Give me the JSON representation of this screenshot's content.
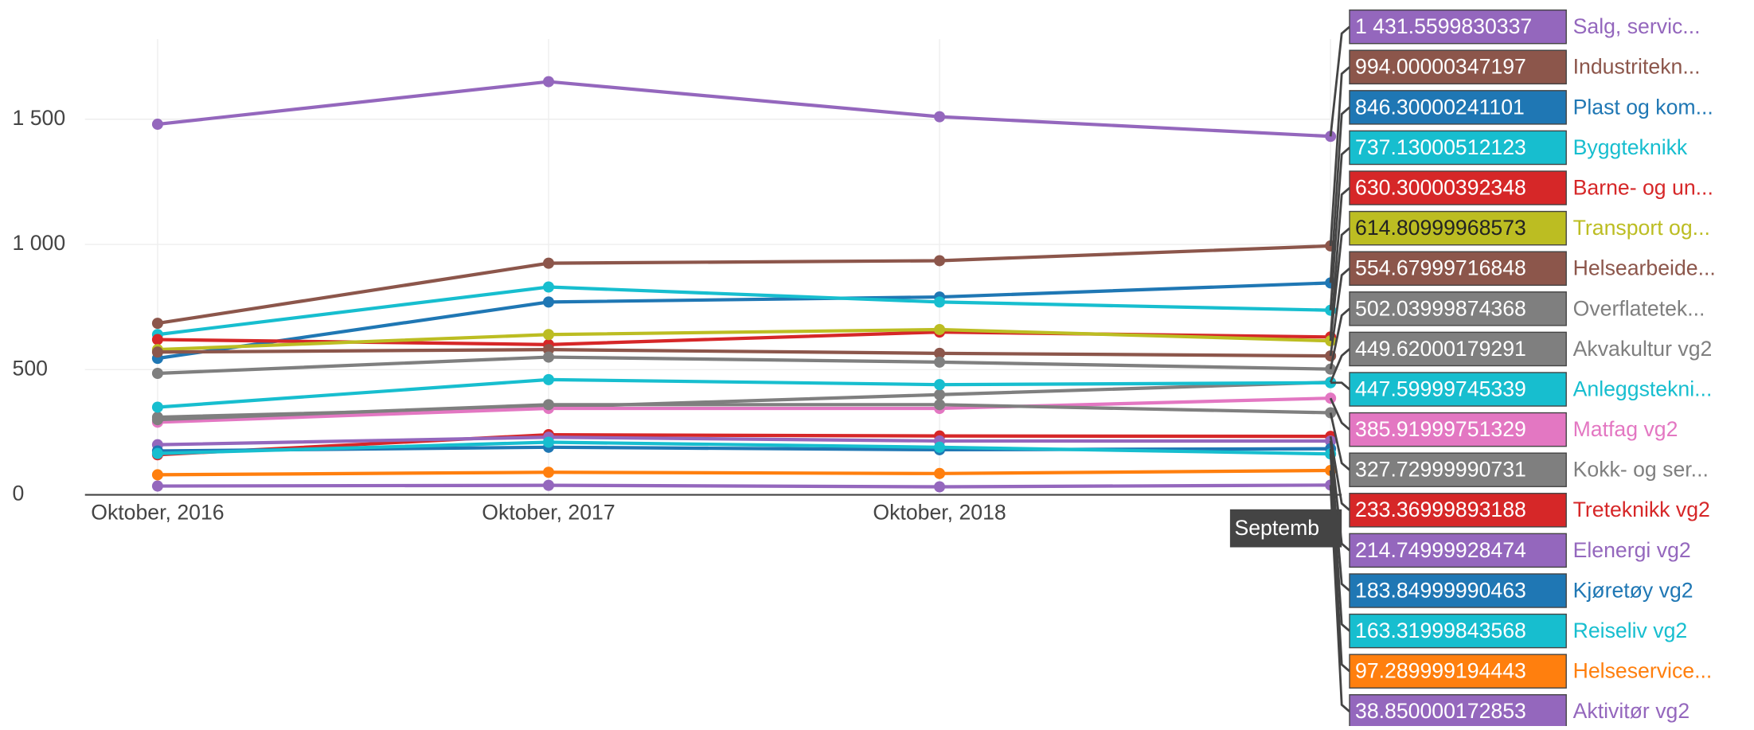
{
  "chart_data": {
    "type": "line",
    "categories": [
      "Oktober, 2016",
      "Oktober, 2017",
      "Oktober, 2018",
      null
    ],
    "hover_x_label": "Septemb",
    "ylim": [
      0,
      1820
    ],
    "yticks": [
      0,
      500,
      {
        "value": 1000,
        "label": "1 000"
      },
      {
        "value": 1500,
        "label": "1 500"
      }
    ],
    "grid": true,
    "series": [
      {
        "name": "Salg, servic...",
        "color": "#9467bd",
        "values": [
          1480,
          1650,
          1510,
          1431.5599830337
        ],
        "hover_label": "1 431.5599830337"
      },
      {
        "name": "Industritekn...",
        "color": "#8c564b",
        "values": [
          685,
          925,
          935,
          994.00000347197
        ],
        "hover_label": "994.00000347197"
      },
      {
        "name": "Plast og kom...",
        "color": "#1f77b4",
        "values": [
          545,
          770,
          790,
          846.30000241101
        ],
        "hover_label": "846.30000241101"
      },
      {
        "name": "Byggteknikk",
        "color": "#17becf",
        "values": [
          640,
          830,
          770,
          737.13000512123
        ],
        "hover_label": "737.13000512123"
      },
      {
        "name": "Barne- og un...",
        "color": "#d62728",
        "values": [
          620,
          600,
          650,
          630.30000392348
        ],
        "hover_label": "630.30000392348"
      },
      {
        "name": "Transport og...",
        "color": "#bcbd22",
        "values": [
          580,
          640,
          660,
          614.80999968573
        ],
        "hover_label": "614.80999968573"
      },
      {
        "name": "Helsearbeide...",
        "color": "#8c564b",
        "values": [
          570,
          580,
          565,
          554.67999716848
        ],
        "hover_label": "554.67999716848"
      },
      {
        "name": "Overflatetek...",
        "color": "#7f7f7f",
        "values": [
          485,
          550,
          530,
          502.03999874368
        ],
        "hover_label": "502.03999874368"
      },
      {
        "name": "Akvakultur vg2",
        "color": "#7f7f7f",
        "values": [
          310,
          350,
          400,
          449.62000179291
        ],
        "hover_label": "449.62000179291"
      },
      {
        "name": "Anleggstekni...",
        "color": "#17becf",
        "values": [
          350,
          460,
          440,
          447.59999745339
        ],
        "hover_label": "447.59999745339"
      },
      {
        "name": "Matfag vg2",
        "color": "#e377c2",
        "values": [
          290,
          345,
          345,
          385.91999751329
        ],
        "hover_label": "385.91999751329"
      },
      {
        "name": "Kokk- og ser...",
        "color": "#7f7f7f",
        "values": [
          300,
          360,
          360,
          327.72999990731
        ],
        "hover_label": "327.72999990731"
      },
      {
        "name": "Treteknikk vg2",
        "color": "#d62728",
        "values": [
          160,
          240,
          235,
          233.36999893188
        ],
        "hover_label": "233.36999893188"
      },
      {
        "name": "Elenergi vg2",
        "color": "#9467bd",
        "values": [
          200,
          230,
          215,
          214.74999928474
        ],
        "hover_label": "214.74999928474"
      },
      {
        "name": "Kjøretøy vg2",
        "color": "#1f77b4",
        "values": [
          175,
          190,
          180,
          183.84999990463
        ],
        "hover_label": "183.84999990463"
      },
      {
        "name": "Reiseliv vg2",
        "color": "#17becf",
        "values": [
          165,
          210,
          190,
          163.31999843568
        ],
        "hover_label": "163.31999843568"
      },
      {
        "name": "Helseservice...",
        "color": "#ff7f0e",
        "values": [
          80,
          90,
          85,
          97.289999194443
        ],
        "hover_label": "97.289999194443"
      },
      {
        "name": "Aktivitør vg2",
        "color": "#9467bd",
        "values": [
          35,
          38,
          32,
          38.850000172853
        ],
        "hover_label": "38.850000172853"
      }
    ]
  }
}
